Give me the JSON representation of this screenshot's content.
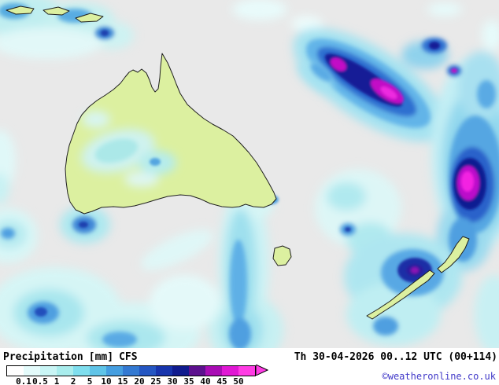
{
  "map": {
    "region": "Australia and New Zealand",
    "background_color": "#e9e9e9",
    "land_color": "#dcf0a0",
    "coast_color": "#1f1f1f"
  },
  "legend": {
    "title": "Precipitation",
    "unit": "[mm]",
    "model": "CFS",
    "ticks": [
      "0.1",
      "0.5",
      "1",
      "2",
      "5",
      "10",
      "15",
      "20",
      "25",
      "30",
      "35",
      "40",
      "45",
      "50"
    ],
    "colors": [
      "#ffffff",
      "#e4fbfb",
      "#c9f5f5",
      "#a9eded",
      "#7fdeee",
      "#5fc4e8",
      "#459ee0",
      "#3379d2",
      "#2456c2",
      "#1734ac",
      "#101b8e",
      "#5c108e",
      "#a80cb4",
      "#e018d4",
      "#ff3ce4"
    ],
    "arrow_color": "#ff3ce4"
  },
  "footer": {
    "datetime": "Th 30-04-2026 00..12 UTC (00+114)",
    "copyright": "©weatheronline.co.uk"
  }
}
